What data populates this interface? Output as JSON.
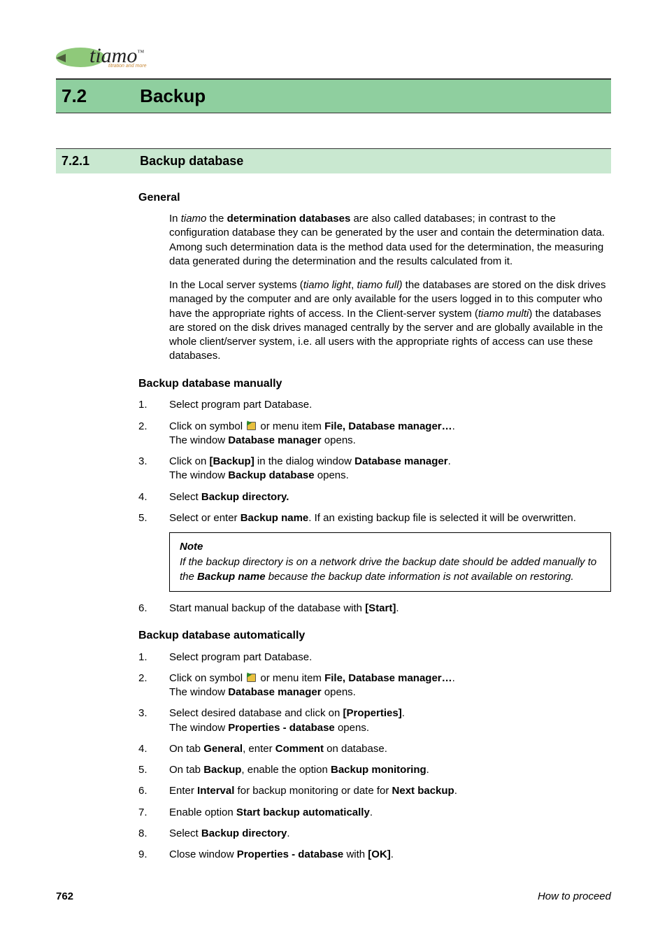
{
  "logo": {
    "text": "tiamo",
    "tm": "™",
    "sub": "titration and more"
  },
  "h1": {
    "num": "7.2",
    "title": "Backup"
  },
  "h2": {
    "num": "7.2.1",
    "title": "Backup database"
  },
  "sec_general": {
    "heading": "General",
    "p1_a": "In ",
    "p1_b": "tiamo",
    "p1_c": " the ",
    "p1_d": "determination databases",
    "p1_e": " are also called databases; in contrast to the configuration database they can be generated by the user and contain the determination data. Among such determination data is the method data used for the determination, the measuring data generated during the determination and the results calculated from it.",
    "p2_a": "In the Local server systems (",
    "p2_b": "tiamo light",
    "p2_c": ", ",
    "p2_d": "tiamo full)",
    "p2_e": " the databases are stored on the disk drives managed by the computer and are only available for the users logged in to this computer who have the appropriate rights of access. In the Client-server system (",
    "p2_f": "tiamo multi",
    "p2_g": ") the databases are stored on the disk drives managed centrally by the server and are globally available in the whole client/server system, i.e. all users with the appropriate rights of access can use these databases."
  },
  "sec_manual": {
    "heading": "Backup database manually",
    "s1": "Select program part Database.",
    "s2a": "Click on symbol ",
    "s2b": " or menu item ",
    "s2c": "File, Database manager…",
    "s2d": ".",
    "s2e": "The window ",
    "s2f": "Database manager",
    "s2g": " opens.",
    "s3a": "Click on ",
    "s3b": "[Backup]",
    "s3c": " in the dialog window ",
    "s3d": "Database manager",
    "s3e": ".",
    "s3f": "The window ",
    "s3g": "Backup database",
    "s3h": " opens.",
    "s4a": "Select ",
    "s4b": "Backup directory.",
    "s5a": "Select or enter ",
    "s5b": "Backup name",
    "s5c": ". If an existing backup file is selected it will be overwritten.",
    "note_t": "Note",
    "note_a": "If the backup directory is on a network drive the backup date should be added manually to the ",
    "note_b": "Backup name",
    "note_c": " because the backup date information is not available on restoring.",
    "s6a": "Start manual backup of the database with ",
    "s6b": "[Start]",
    "s6c": "."
  },
  "sec_auto": {
    "heading": "Backup database automatically",
    "s1": "Select program part Database.",
    "s2a": "Click on symbol ",
    "s2b": " or menu item ",
    "s2c": "File, Database manager…",
    "s2d": ".",
    "s2e": "The window ",
    "s2f": "Database manager",
    "s2g": " opens.",
    "s3a": "Select desired database and click on ",
    "s3b": "[Properties]",
    "s3c": ".",
    "s3d": "The window ",
    "s3e": "Properties - database",
    "s3f": " opens.",
    "s4a": "On tab ",
    "s4b": "General",
    "s4c": ", enter ",
    "s4d": "Comment",
    "s4e": " on database.",
    "s5a": "On tab ",
    "s5b": "Backup",
    "s5c": ", enable the option ",
    "s5d": "Backup monitoring",
    "s5e": ".",
    "s6a": "Enter ",
    "s6b": "Interval",
    "s6c": " for backup monitoring or date for ",
    "s6d": "Next backup",
    "s6e": ".",
    "s7a": "Enable option ",
    "s7b": "Start backup automatically",
    "s7c": ".",
    "s8a": "Select ",
    "s8b": "Backup directory",
    "s8c": ".",
    "s9a": "Close window ",
    "s9b": "Properties - database",
    "s9c": " with ",
    "s9d": "[OK]",
    "s9e": "."
  },
  "footer": {
    "page": "762",
    "title": "How to proceed"
  }
}
